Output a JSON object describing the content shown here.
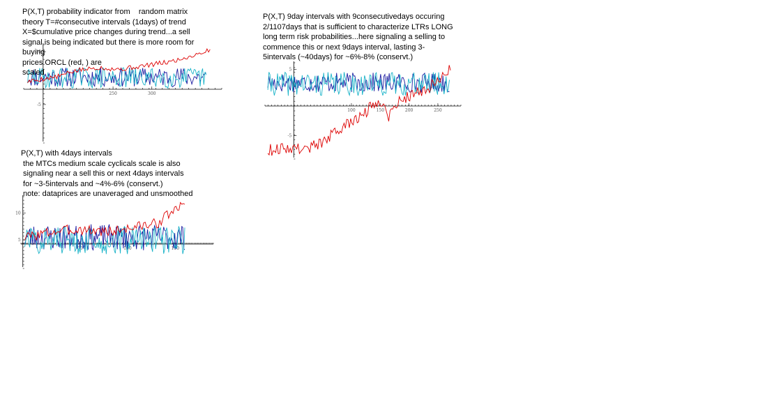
{
  "notes": [
    {
      "lines": [
        "P(X,T) probability indicator from    random matrix",
        "theory T=#consecutive intervals (1days) of trend",
        "X=$cumulative price changes during trend...a sell",
        "signal is being indicated but there is more room for",
        "buying",
        "prices ORCL (red, ) are",
        "scaled"
      ]
    },
    {
      "lines": [
        "P(X,T) 9day intervals with 9consecutivedays occuring",
        "2/1107days that is sufficient to characterize LTRs LONG",
        "long term risk probabilities...here signaling a selling to",
        "commence this or next 9days interval, lasting 3-",
        "5intervals (~40days) for ~6%-8% (conservt.)"
      ]
    },
    {
      "lines": [
        "P(X,T) with 4days intervals",
        " the MTCs medium scale cyclicals scale is also",
        " signaling near a sell this or next 4days intervals",
        " for ~3-5intervals and ~4%-6% (conservt.)",
        " note: dataprices are unaveraged and unsmoothed"
      ]
    }
  ],
  "chart_data": [
    {
      "type": "line",
      "x_ticks": [
        250,
        300
      ],
      "y_ticks": [
        10,
        -5
      ],
      "xlim": [
        135,
        390
      ],
      "ylim": [
        -7,
        12
      ],
      "colors": [
        "#dd0000",
        "#1a1aa0",
        "#19b3c8"
      ]
    },
    {
      "type": "line",
      "x_ticks": [
        100,
        150,
        200,
        250
      ],
      "y_ticks": [
        5,
        -5
      ],
      "xlim": [
        -50,
        290
      ],
      "ylim": [
        -8,
        6
      ],
      "colors": [
        "#dd0000",
        "#1a1aa0",
        "#19b3c8"
      ]
    },
    {
      "type": "line",
      "x_ticks": [
        50,
        100,
        150
      ],
      "y_ticks": [
        10,
        5
      ],
      "xlim": [
        -12,
        190
      ],
      "ylim": [
        0,
        13
      ],
      "colors": [
        "#dd0000",
        "#1a1aa0",
        "#19b3c8"
      ]
    }
  ]
}
